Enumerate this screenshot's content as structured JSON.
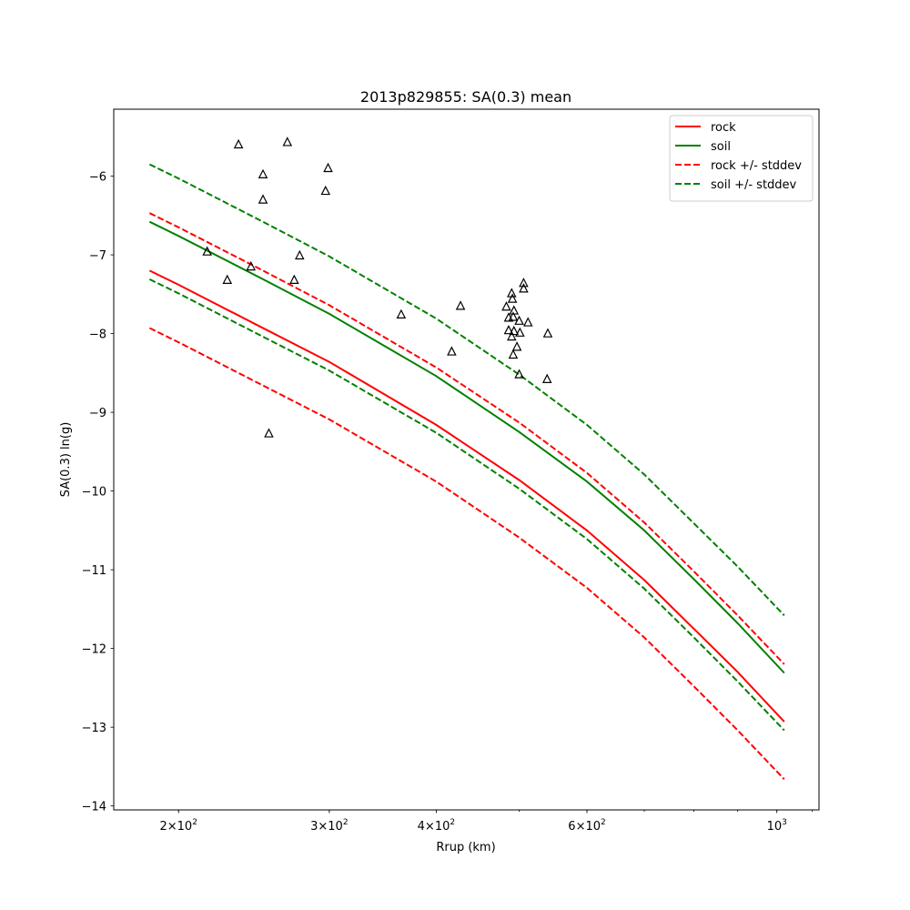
{
  "chart_data": {
    "type": "line",
    "title": "2013p829855: SA(0.3) mean",
    "xlabel": "Rrup (km)",
    "ylabel": "SA(0.3) ln(g)",
    "xscale": "log",
    "xlim": [
      168,
      1120
    ],
    "ylim": [
      -14.05,
      -5.15
    ],
    "x_ticks": [
      {
        "value": 200,
        "base": "2",
        "exp": "2"
      },
      {
        "value": 300,
        "base": "3",
        "exp": "2"
      },
      {
        "value": 400,
        "base": "4",
        "exp": "2"
      },
      {
        "value": 600,
        "base": "6",
        "exp": "2"
      },
      {
        "value": 1000,
        "base": "10",
        "exp": "3"
      }
    ],
    "y_ticks": [
      {
        "value": -6,
        "label": "−6"
      },
      {
        "value": -7,
        "label": "−7"
      },
      {
        "value": -8,
        "label": "−8"
      },
      {
        "value": -9,
        "label": "−9"
      },
      {
        "value": -10,
        "label": "−10"
      },
      {
        "value": -11,
        "label": "−11"
      },
      {
        "value": -12,
        "label": "−12"
      },
      {
        "value": -13,
        "label": "−13"
      },
      {
        "value": -14,
        "label": "−14"
      }
    ],
    "legend_position": "top-right",
    "series": [
      {
        "name": "rock",
        "color": "#ff0000",
        "style": "solid",
        "x": [
          185,
          200,
          250,
          300,
          400,
          500,
          600,
          700,
          800,
          900,
          1020
        ],
        "y": [
          -7.2,
          -7.38,
          -7.92,
          -8.36,
          -9.16,
          -9.86,
          -10.5,
          -11.13,
          -11.75,
          -12.3,
          -12.93
        ]
      },
      {
        "name": "soil",
        "color": "#008000",
        "style": "solid",
        "x": [
          185,
          200,
          250,
          300,
          400,
          500,
          600,
          700,
          800,
          900,
          1020
        ],
        "y": [
          -6.58,
          -6.76,
          -7.3,
          -7.75,
          -8.54,
          -9.25,
          -9.88,
          -10.5,
          -11.12,
          -11.68,
          -12.31
        ]
      },
      {
        "name": "rock +/- stddev",
        "color": "#ff0000",
        "style": "dashed",
        "x": [
          185,
          200,
          250,
          300,
          400,
          500,
          600,
          700,
          800,
          900,
          1020
        ],
        "y": [
          -6.47,
          -6.65,
          -7.19,
          -7.64,
          -8.43,
          -9.13,
          -9.77,
          -10.4,
          -11.02,
          -11.58,
          -12.2
        ]
      },
      {
        "name": "",
        "color": "#ff0000",
        "style": "dashed",
        "x": [
          185,
          200,
          250,
          300,
          400,
          500,
          600,
          700,
          800,
          900,
          1020
        ],
        "y": [
          -7.93,
          -8.11,
          -8.65,
          -9.09,
          -9.88,
          -10.59,
          -11.23,
          -11.86,
          -12.48,
          -13.04,
          -13.66
        ]
      },
      {
        "name": "soil +/- stddev",
        "color": "#008000",
        "style": "dashed",
        "x": [
          185,
          200,
          250,
          300,
          400,
          500,
          600,
          700,
          800,
          900,
          1020
        ],
        "y": [
          -5.85,
          -6.03,
          -6.57,
          -7.02,
          -7.81,
          -8.52,
          -9.16,
          -9.79,
          -10.41,
          -10.96,
          -11.58
        ]
      },
      {
        "name": "",
        "color": "#008000",
        "style": "dashed",
        "x": [
          185,
          200,
          250,
          300,
          400,
          500,
          600,
          700,
          800,
          900,
          1020
        ],
        "y": [
          -7.31,
          -7.49,
          -8.03,
          -8.47,
          -9.26,
          -9.97,
          -10.61,
          -11.24,
          -11.86,
          -12.42,
          -13.04
        ]
      }
    ],
    "observations": {
      "marker": "triangle",
      "color": "#000000",
      "points": [
        [
          235,
          -5.6
        ],
        [
          268,
          -5.57
        ],
        [
          251,
          -5.98
        ],
        [
          299,
          -5.9
        ],
        [
          297,
          -6.19
        ],
        [
          251,
          -6.3
        ],
        [
          216,
          -6.96
        ],
        [
          277,
          -7.01
        ],
        [
          243,
          -7.15
        ],
        [
          228,
          -7.32
        ],
        [
          273,
          -7.32
        ],
        [
          255,
          -9.27
        ],
        [
          364,
          -7.76
        ],
        [
          427,
          -7.65
        ],
        [
          417,
          -8.23
        ],
        [
          483,
          -7.66
        ],
        [
          490,
          -7.49
        ],
        [
          491,
          -7.56
        ],
        [
          506,
          -7.36
        ],
        [
          506,
          -7.43
        ],
        [
          486,
          -7.8
        ],
        [
          493,
          -7.71
        ],
        [
          492,
          -7.79
        ],
        [
          500,
          -7.84
        ],
        [
          512,
          -7.86
        ],
        [
          486,
          -7.96
        ],
        [
          493,
          -7.97
        ],
        [
          501,
          -7.99
        ],
        [
          540,
          -8.0
        ],
        [
          490,
          -8.04
        ],
        [
          497,
          -8.17
        ],
        [
          492,
          -8.27
        ],
        [
          500,
          -8.52
        ],
        [
          539,
          -8.58
        ]
      ]
    }
  }
}
